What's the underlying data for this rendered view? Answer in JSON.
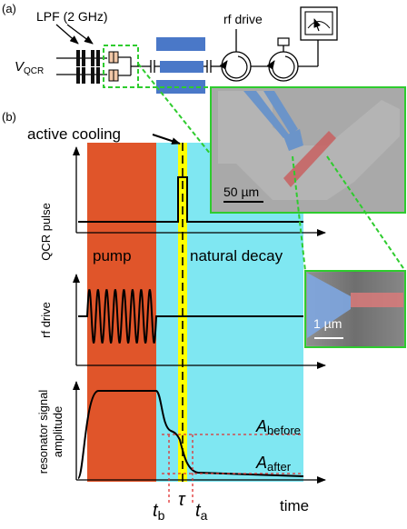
{
  "panel_a": {
    "panel_label": "(a)",
    "lpf_label": "LPF (2 GHz)",
    "vqcr_main": "V",
    "vqcr_sub": "QCR",
    "rf_drive_label": "rf drive"
  },
  "panel_b": {
    "panel_label": "(b)",
    "active_cooling": "active cooling",
    "pump": "pump",
    "natural_decay": "natural decay",
    "y_label_qcr": "QCR pulse",
    "y_label_rf": "rf drive",
    "y_label_res_1": "resonator signal",
    "y_label_res_2": "amplitude",
    "a_before_main": "A",
    "a_before_sub": "before",
    "a_after_main": "A",
    "a_after_sub": "after",
    "tb_main": "t",
    "tb_sub": "b",
    "tau": "τ",
    "ta_main": "t",
    "ta_sub": "a",
    "time": "time"
  },
  "insets": {
    "scale_large": "50 µm",
    "scale_small": "1 µm"
  },
  "colors": {
    "pump": "#e0552a",
    "decay": "#7fe7f2",
    "cooling": "#ffff00",
    "resonator": "#4a78c8",
    "inset_border": "#2ecc2e",
    "guide": "#e03030"
  }
}
